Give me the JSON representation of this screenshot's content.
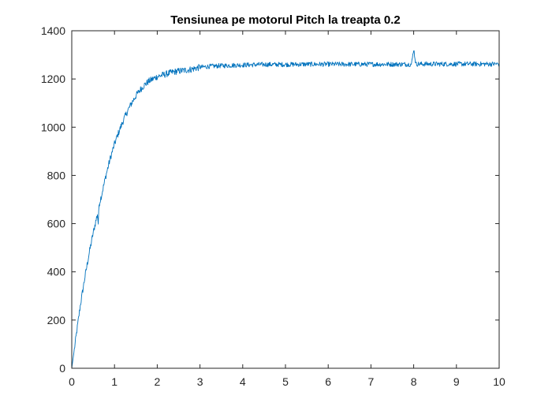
{
  "chart_data": {
    "type": "line",
    "title": "Tensiunea pe motorul Pitch la treapta 0.2",
    "xlabel": "",
    "ylabel": "",
    "xlim": [
      0,
      10
    ],
    "ylim": [
      0,
      1400
    ],
    "xticks": [
      "0",
      "1",
      "2",
      "3",
      "4",
      "5",
      "6",
      "7",
      "8",
      "9",
      "10"
    ],
    "yticks": [
      "0",
      "200",
      "400",
      "600",
      "800",
      "1000",
      "1200",
      "1400"
    ],
    "grid": false,
    "legend": "none",
    "line_color": "#0072BD",
    "series": [
      {
        "x": [
          0,
          0.1,
          0.2,
          0.3,
          0.4,
          0.5,
          0.6,
          0.62,
          0.64,
          0.7,
          0.8,
          0.9,
          1.0,
          1.1,
          1.2,
          1.3,
          1.4,
          1.5,
          1.6,
          1.7,
          1.8,
          1.9,
          2.0,
          2.2,
          2.4,
          2.6,
          2.8,
          2.9,
          3.0,
          3.2,
          3.5,
          4.0,
          4.5,
          5.0,
          5.5,
          6.0,
          6.5,
          7.0,
          7.5,
          7.95,
          8.0,
          8.05,
          8.5,
          9.0,
          9.5,
          10.0
        ],
        "y": [
          0,
          130,
          260,
          370,
          470,
          560,
          640,
          600,
          680,
          720,
          800,
          870,
          930,
          980,
          1025,
          1065,
          1100,
          1130,
          1155,
          1175,
          1190,
          1200,
          1210,
          1220,
          1230,
          1235,
          1240,
          1245,
          1248,
          1252,
          1255,
          1258,
          1260,
          1260,
          1261,
          1261,
          1261,
          1261,
          1261,
          1261,
          1325,
          1262,
          1262,
          1262,
          1262,
          1262
        ]
      }
    ]
  }
}
